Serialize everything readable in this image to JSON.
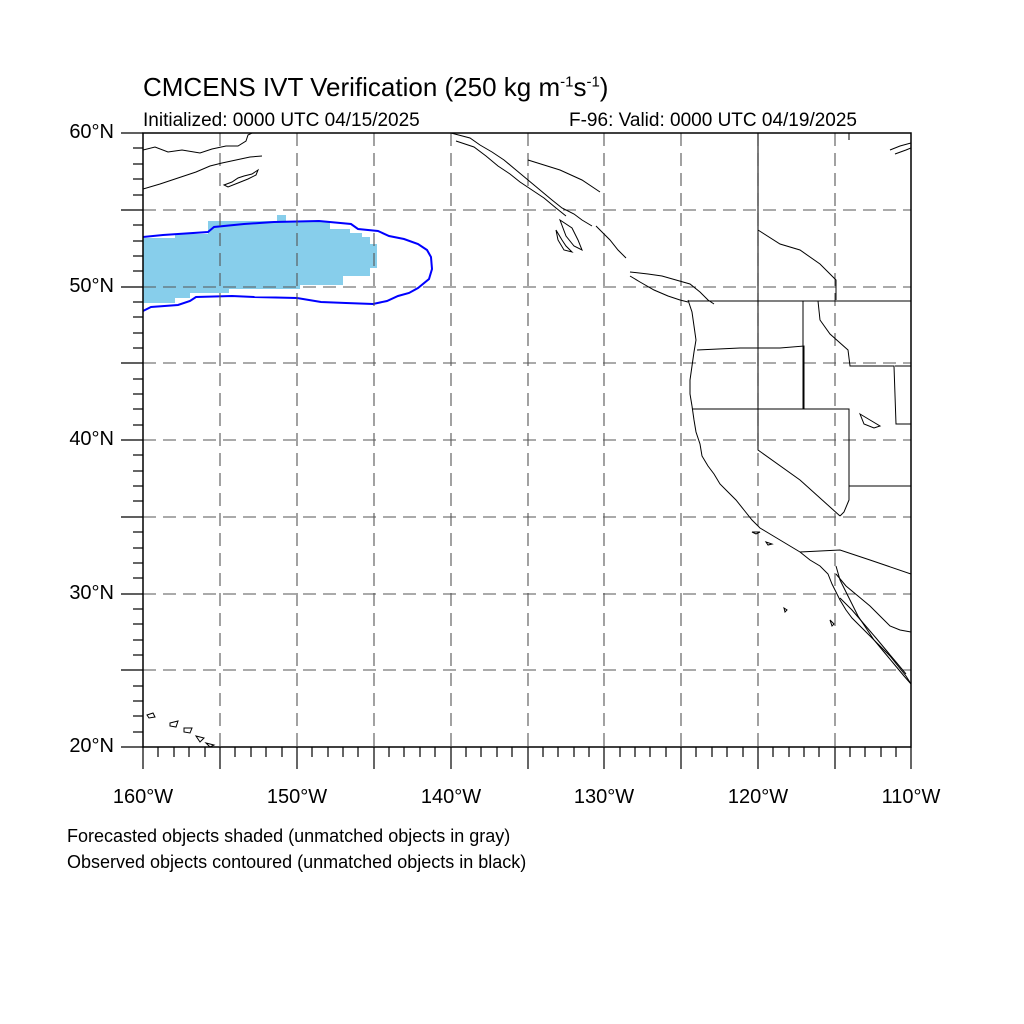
{
  "title": {
    "main": "CMCENS IVT Verification (250 kg m",
    "sup1": "-1",
    "mid": "s",
    "sup2": "-1",
    "end": ")"
  },
  "subtitle": {
    "initialized": "Initialized: 0000 UTC 04/15/2025",
    "valid": "F-96: Valid: 0000 UTC 04/19/2025"
  },
  "axes": {
    "lat_labels": [
      "60°N",
      "50°N",
      "40°N",
      "30°N",
      "20°N"
    ],
    "lon_labels": [
      "160°W",
      "150°W",
      "140°W",
      "130°W",
      "120°W",
      "110°W"
    ],
    "lat_range": [
      20,
      60
    ],
    "lon_range": [
      -160,
      -110
    ],
    "grid": "dashed every 5 degrees"
  },
  "notes": {
    "forecast": "Forecasted objects shaded (unmatched objects in gray)",
    "observed": "Observed objects contoured (unmatched objects in black)"
  },
  "colors": {
    "forecast_fill": "#87CEEB",
    "observed_contour": "#0000FF",
    "coastline": "#000000",
    "grid": "#555555"
  }
}
